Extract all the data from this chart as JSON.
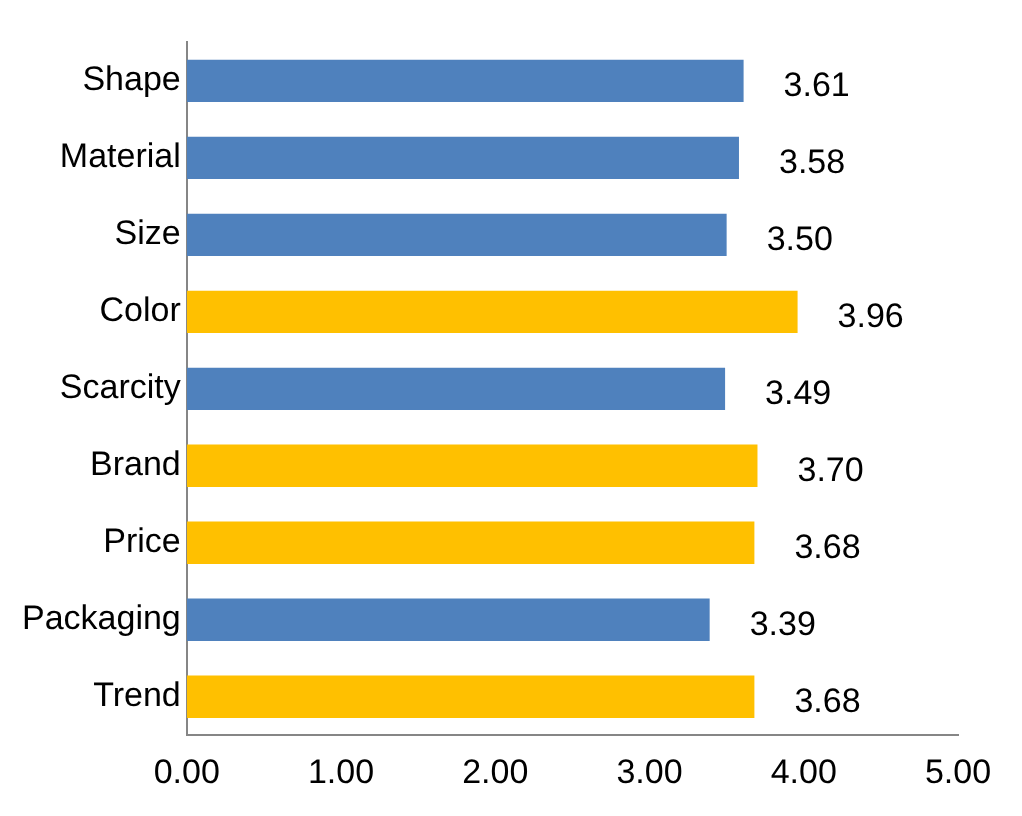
{
  "chart_data": {
    "type": "bar",
    "orientation": "horizontal",
    "categories": [
      "Shape",
      "Material",
      "Size",
      "Color",
      "Scarcity",
      "Brand",
      "Price",
      "Packaging",
      "Trend"
    ],
    "values": [
      3.61,
      3.58,
      3.5,
      3.96,
      3.49,
      3.7,
      3.68,
      3.39,
      3.68
    ],
    "colors": [
      "#4f81bd",
      "#4f81bd",
      "#4f81bd",
      "#ffc000",
      "#4f81bd",
      "#ffc000",
      "#ffc000",
      "#4f81bd",
      "#ffc000"
    ],
    "value_labels": [
      "3.61",
      "3.58",
      "3.50",
      "3.96",
      "3.49",
      "3.70",
      "3.68",
      "3.39",
      "3.68"
    ],
    "xlim": [
      0,
      5
    ],
    "xticks": [
      {
        "value": 0,
        "label": "0.00"
      },
      {
        "value": 1,
        "label": "1.00"
      },
      {
        "value": 2,
        "label": "2.00"
      },
      {
        "value": 3,
        "label": "3.00"
      },
      {
        "value": 4,
        "label": "4.00"
      },
      {
        "value": 5,
        "label": "5.00"
      }
    ],
    "grid": false,
    "legend": false
  }
}
